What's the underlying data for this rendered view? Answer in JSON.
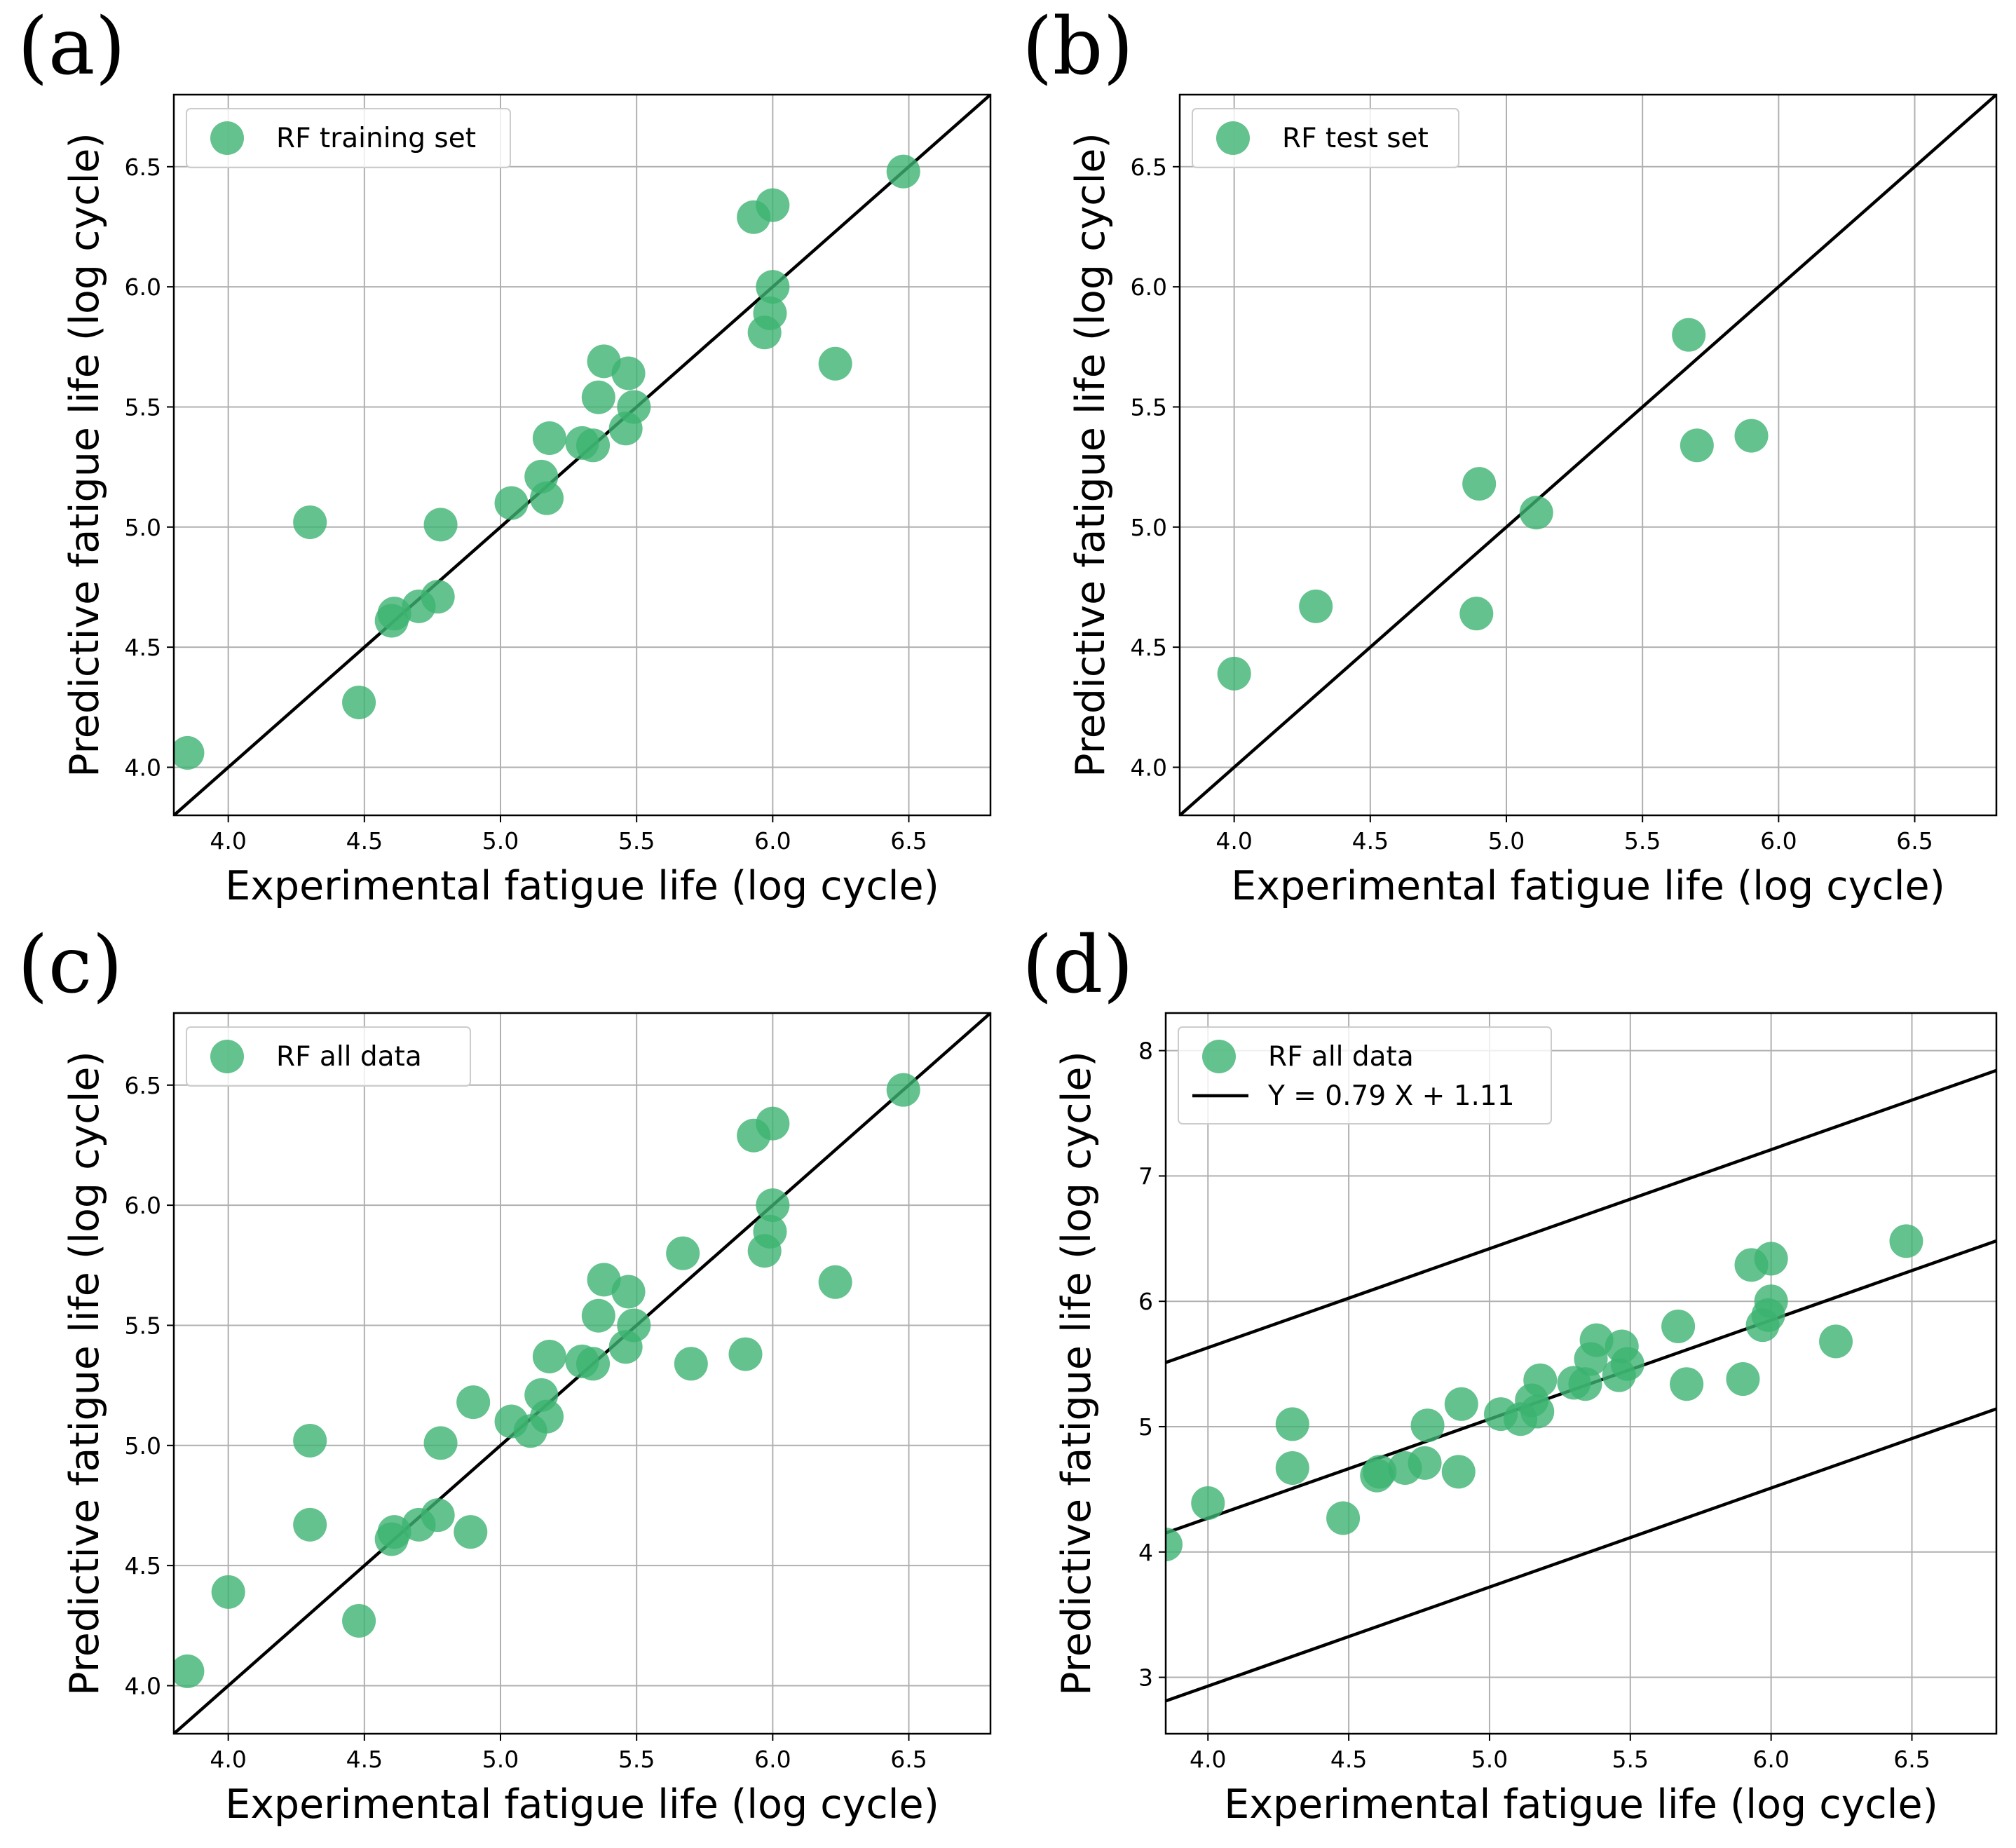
{
  "colors": {
    "marker": "#3cb371",
    "line": "#000000",
    "grid": "#b0b0b0"
  },
  "chart_data": [
    {
      "type": "scatter",
      "panel": "(a)",
      "xlabel": "Experimental fatigue life (log cycle)",
      "ylabel": "Predictive fatigue life (log cycle)",
      "xlim": [
        3.8,
        6.8
      ],
      "ylim": [
        3.8,
        6.8
      ],
      "xticks": [
        4.0,
        4.5,
        5.0,
        5.5,
        6.0,
        6.5
      ],
      "yticks": [
        4.0,
        4.5,
        5.0,
        5.5,
        6.0,
        6.5
      ],
      "xtick_labels": [
        "4.0",
        "4.5",
        "5.0",
        "5.5",
        "6.0",
        "6.5"
      ],
      "ytick_labels": [
        "4.0",
        "4.5",
        "5.0",
        "5.5",
        "6.0",
        "6.5"
      ],
      "grid": true,
      "legend_position": "top-left",
      "series": [
        {
          "name": "RF training set",
          "kind": "scatter",
          "x": [
            3.85,
            4.3,
            4.48,
            4.6,
            4.61,
            4.7,
            4.77,
            4.78,
            5.04,
            5.15,
            5.17,
            5.18,
            5.3,
            5.34,
            5.36,
            5.38,
            5.46,
            5.47,
            5.49,
            5.93,
            5.97,
            5.99,
            6.0,
            6.0,
            6.23,
            6.48
          ],
          "y": [
            4.06,
            5.02,
            4.27,
            4.61,
            4.64,
            4.67,
            4.71,
            5.01,
            5.1,
            5.21,
            5.12,
            5.37,
            5.35,
            5.34,
            5.54,
            5.69,
            5.41,
            5.64,
            5.5,
            6.29,
            5.81,
            5.89,
            6.0,
            6.34,
            5.68,
            6.48
          ]
        }
      ],
      "reference_line": {
        "name": "y = x",
        "slope": 1,
        "intercept": 0
      }
    },
    {
      "type": "scatter",
      "panel": "(b)",
      "xlabel": "Experimental fatigue life (log cycle)",
      "ylabel": "Predictive fatigue life (log cycle)",
      "xlim": [
        3.8,
        6.8
      ],
      "ylim": [
        3.8,
        6.8
      ],
      "xticks": [
        4.0,
        4.5,
        5.0,
        5.5,
        6.0,
        6.5
      ],
      "yticks": [
        4.0,
        4.5,
        5.0,
        5.5,
        6.0,
        6.5
      ],
      "xtick_labels": [
        "4.0",
        "4.5",
        "5.0",
        "5.5",
        "6.0",
        "6.5"
      ],
      "ytick_labels": [
        "4.0",
        "4.5",
        "5.0",
        "5.5",
        "6.0",
        "6.5"
      ],
      "grid": true,
      "legend_position": "top-left",
      "series": [
        {
          "name": "RF test set",
          "kind": "scatter",
          "x": [
            4.0,
            4.3,
            4.89,
            4.9,
            5.11,
            5.67,
            5.7,
            5.9
          ],
          "y": [
            4.39,
            4.67,
            4.64,
            5.18,
            5.06,
            5.8,
            5.34,
            5.38
          ]
        }
      ],
      "reference_line": {
        "name": "y = x",
        "slope": 1,
        "intercept": 0
      }
    },
    {
      "type": "scatter",
      "panel": "(c)",
      "xlabel": "Experimental fatigue life (log cycle)",
      "ylabel": "Predictive fatigue life (log cycle)",
      "xlim": [
        3.8,
        6.8
      ],
      "ylim": [
        3.8,
        6.8
      ],
      "xticks": [
        4.0,
        4.5,
        5.0,
        5.5,
        6.0,
        6.5
      ],
      "yticks": [
        4.0,
        4.5,
        5.0,
        5.5,
        6.0,
        6.5
      ],
      "xtick_labels": [
        "4.0",
        "4.5",
        "5.0",
        "5.5",
        "6.0",
        "6.5"
      ],
      "ytick_labels": [
        "4.0",
        "4.5",
        "5.0",
        "5.5",
        "6.0",
        "6.5"
      ],
      "grid": true,
      "legend_position": "top-left",
      "series": [
        {
          "name": "RF all data",
          "kind": "scatter",
          "x": [
            3.85,
            4.0,
            4.3,
            4.3,
            4.48,
            4.6,
            4.61,
            4.7,
            4.77,
            4.78,
            4.89,
            4.9,
            5.04,
            5.11,
            5.15,
            5.17,
            5.18,
            5.3,
            5.34,
            5.36,
            5.38,
            5.46,
            5.47,
            5.49,
            5.67,
            5.7,
            5.9,
            5.93,
            5.97,
            5.99,
            6.0,
            6.0,
            6.23,
            6.48
          ],
          "y": [
            4.06,
            4.39,
            5.02,
            4.67,
            4.27,
            4.61,
            4.64,
            4.67,
            4.71,
            5.01,
            4.64,
            5.18,
            5.1,
            5.06,
            5.21,
            5.12,
            5.37,
            5.35,
            5.34,
            5.54,
            5.69,
            5.41,
            5.64,
            5.5,
            5.8,
            5.34,
            5.38,
            6.29,
            5.81,
            5.89,
            6.0,
            6.34,
            5.68,
            6.48
          ]
        }
      ],
      "reference_line": {
        "name": "y = x",
        "slope": 1,
        "intercept": 0
      }
    },
    {
      "type": "scatter",
      "panel": "(d)",
      "xlabel": "Experimental fatigue life (log cycle)",
      "ylabel": "Predictive fatigue life (log cycle)",
      "xlim": [
        3.85,
        6.8
      ],
      "ylim": [
        2.55,
        8.3
      ],
      "xticks": [
        4.0,
        4.5,
        5.0,
        5.5,
        6.0,
        6.5
      ],
      "yticks": [
        3,
        4,
        5,
        6,
        7,
        8
      ],
      "xtick_labels": [
        "4.0",
        "4.5",
        "5.0",
        "5.5",
        "6.0",
        "6.5"
      ],
      "ytick_labels": [
        "3",
        "4",
        "5",
        "6",
        "7",
        "8"
      ],
      "grid": true,
      "legend_position": "top-left",
      "series": [
        {
          "name": "RF all data",
          "kind": "scatter",
          "x": [
            3.85,
            4.0,
            4.3,
            4.3,
            4.48,
            4.6,
            4.61,
            4.7,
            4.77,
            4.78,
            4.89,
            4.9,
            5.04,
            5.11,
            5.15,
            5.17,
            5.18,
            5.3,
            5.34,
            5.36,
            5.38,
            5.46,
            5.47,
            5.49,
            5.67,
            5.7,
            5.9,
            5.93,
            5.97,
            5.99,
            6.0,
            6.0,
            6.23,
            6.48
          ],
          "y": [
            4.06,
            4.39,
            5.02,
            4.67,
            4.27,
            4.61,
            4.64,
            4.67,
            4.71,
            5.01,
            4.64,
            5.18,
            5.1,
            5.06,
            5.21,
            5.12,
            5.37,
            5.35,
            5.34,
            5.54,
            5.69,
            5.41,
            5.64,
            5.5,
            5.8,
            5.34,
            5.38,
            6.29,
            5.81,
            5.89,
            6.0,
            6.34,
            5.68,
            6.48
          ]
        },
        {
          "name": "Y = 0.79 X + 1.11",
          "kind": "line",
          "slope": 0.79,
          "intercept": 1.11
        }
      ],
      "bounds": [
        {
          "name": "upper band",
          "slope": 0.79,
          "intercept": 2.47
        },
        {
          "name": "lower band",
          "slope": 0.79,
          "intercept": -0.23
        }
      ]
    }
  ]
}
